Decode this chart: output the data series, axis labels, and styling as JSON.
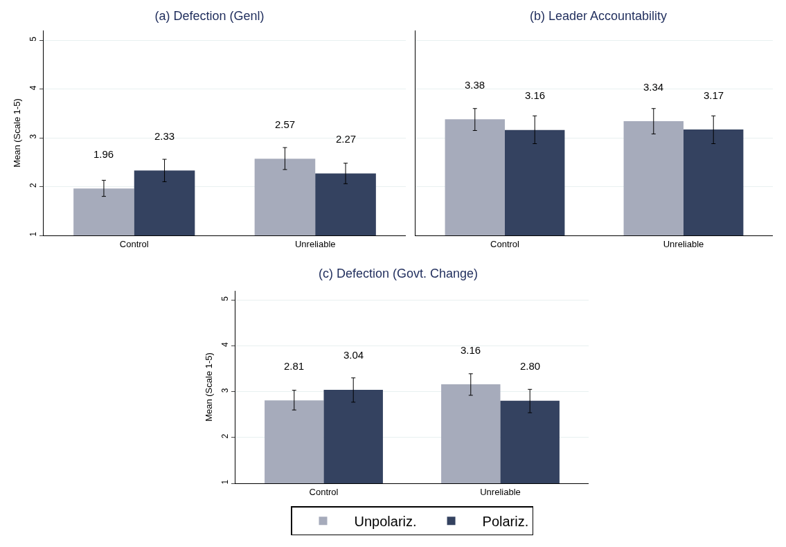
{
  "chart_data": [
    {
      "type": "bar",
      "title": "(a) Defection (Genl)",
      "ylabel": "Mean (Scale 1-5)",
      "categories": [
        "Control",
        "Unreliable"
      ],
      "ylim": [
        1,
        5.2
      ],
      "yticks": [
        1,
        2,
        3,
        4,
        5
      ],
      "grid": "y",
      "legend": false,
      "series": [
        {
          "color": "#a6abbb",
          "values": [
            1.96,
            2.57
          ],
          "value_labels": [
            "1.96",
            "2.57"
          ],
          "errors": [
            [
              1.8,
              2.13
            ],
            [
              2.35,
              2.8
            ]
          ]
        },
        {
          "color": "#344260",
          "values": [
            2.33,
            2.27
          ],
          "value_labels": [
            "2.33",
            "2.27"
          ],
          "errors": [
            [
              2.1,
              2.56
            ],
            [
              2.06,
              2.48
            ]
          ]
        }
      ]
    },
    {
      "type": "bar",
      "title": "(b) Leader Accountability",
      "categories": [
        "Control",
        "Unreliable"
      ],
      "ylim": [
        1,
        5.2
      ],
      "yticks": [
        1,
        2,
        3,
        4,
        5
      ],
      "grid": "y",
      "legend": false,
      "tick_labels": "x",
      "series": [
        {
          "color": "#a6abbb",
          "values": [
            3.38,
            3.34
          ],
          "value_labels": [
            "3.38",
            "3.34"
          ],
          "errors": [
            [
              3.15,
              3.6
            ],
            [
              3.08,
              3.6
            ]
          ]
        },
        {
          "color": "#344260",
          "values": [
            3.16,
            3.17
          ],
          "value_labels": [
            "3.16",
            "3.17"
          ],
          "errors": [
            [
              2.88,
              3.45
            ],
            [
              2.88,
              3.45
            ]
          ]
        }
      ]
    },
    {
      "type": "bar",
      "title": "(c) Defection (Govt. Change)",
      "ylabel": "Mean (Scale 1-5)",
      "categories": [
        "Control",
        "Unreliable"
      ],
      "ylim": [
        1,
        5.2
      ],
      "yticks": [
        1,
        2,
        3,
        4,
        5
      ],
      "grid": "y",
      "legend": "bottom",
      "series": [
        {
          "name": "Unpolariz.",
          "color": "#a6abbb",
          "values": [
            2.81,
            3.16
          ],
          "value_labels": [
            "2.81",
            "3.16"
          ],
          "errors": [
            [
              2.6,
              3.03
            ],
            [
              2.92,
              3.39
            ]
          ]
        },
        {
          "name": "Polariz.",
          "color": "#344260",
          "values": [
            3.04,
            2.8
          ],
          "value_labels": [
            "3.04",
            "2.80"
          ],
          "errors": [
            [
              2.77,
              3.3
            ],
            [
              2.54,
              3.05
            ]
          ]
        }
      ]
    }
  ]
}
